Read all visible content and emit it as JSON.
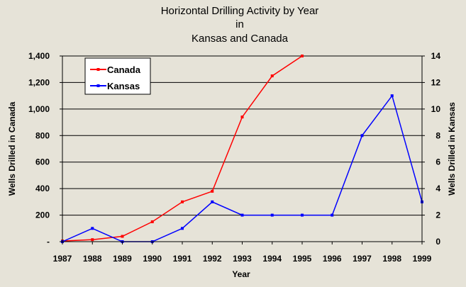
{
  "chart_data": {
    "type": "line",
    "title_lines": [
      "Horizontal Drilling Activity by Year",
      "in",
      "Kansas and Canada"
    ],
    "xlabel": "Year",
    "ylabel_left": "Wells Drilled in Canada",
    "ylabel_right": "Wells Drilled in Kansas",
    "x": [
      1987,
      1988,
      1989,
      1990,
      1991,
      1992,
      1993,
      1994,
      1995,
      1996,
      1997,
      1998,
      1999
    ],
    "x_tick_labels": [
      "1987",
      "1988",
      "1989",
      "1990",
      "1991",
      "1992",
      "1993",
      "1994",
      "1995",
      "1996",
      "1997",
      "1998",
      "1999"
    ],
    "ylim_left": [
      0,
      1400
    ],
    "ylim_right": [
      0,
      14
    ],
    "y_left_tick_labels": [
      "-",
      "200",
      "400",
      "600",
      "800",
      "1,000",
      "1,200",
      "1,400"
    ],
    "y_left_tick_values": [
      0,
      200,
      400,
      600,
      800,
      1000,
      1200,
      1400
    ],
    "y_right_tick_labels": [
      "0",
      "2",
      "4",
      "6",
      "8",
      "10",
      "12",
      "14"
    ],
    "y_right_tick_values": [
      0,
      2,
      4,
      6,
      8,
      10,
      12,
      14
    ],
    "grid": true,
    "legend_position": "top-left",
    "series": [
      {
        "name": "Canada",
        "axis": "left",
        "color": "#ff0000",
        "x": [
          1987,
          1988,
          1989,
          1990,
          1991,
          1992,
          1993,
          1994,
          1995
        ],
        "values": [
          5,
          15,
          40,
          150,
          300,
          380,
          940,
          1250,
          1400
        ]
      },
      {
        "name": "Kansas",
        "axis": "right",
        "color": "#0000ff",
        "x": [
          1987,
          1988,
          1989,
          1990,
          1991,
          1992,
          1993,
          1994,
          1995,
          1996,
          1997,
          1998,
          1999
        ],
        "values": [
          0,
          1,
          0,
          0,
          1,
          3,
          2,
          2,
          2,
          2,
          8,
          11,
          3
        ]
      }
    ]
  }
}
